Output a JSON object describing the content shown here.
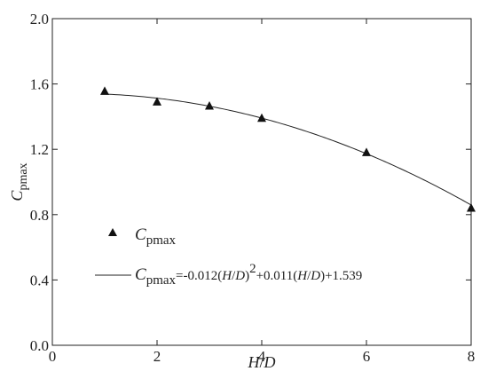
{
  "chart_data": {
    "type": "scatter",
    "xlabel": "H/D",
    "ylabel": "Cpmax",
    "xlim": [
      0,
      8
    ],
    "ylim": [
      0.0,
      2.0
    ],
    "x_ticks": [
      "0",
      "2",
      "4",
      "6",
      "8"
    ],
    "y_ticks": [
      "0.0",
      "0.4",
      "0.8",
      "1.2",
      "1.6",
      "2.0"
    ],
    "grid": false,
    "legend_position": "center-left",
    "series": [
      {
        "name": "Cpmax",
        "marker": "triangle",
        "x": [
          1,
          2,
          3,
          4,
          6,
          8
        ],
        "y": [
          1.555,
          1.49,
          1.465,
          1.39,
          1.18,
          0.84
        ]
      },
      {
        "name": "Cpmax=-0.012(H/D)2+0.011(H/D)+1.539",
        "type": "line",
        "equation": {
          "a": -0.012,
          "b": 0.011,
          "c": 1.539
        },
        "x_range": [
          1,
          8
        ]
      }
    ],
    "legend": {
      "marker_entry": {
        "symbol": "C",
        "subscript": "pmax"
      },
      "line_entry": {
        "symbol": "C",
        "subscript": "pmax",
        "part1": "=-0.012(",
        "H": "H",
        "slash": "/",
        "D": "D",
        "part2": ")",
        "sup": "2",
        "part3": "+0.011(",
        "part4": ")+1.539"
      }
    },
    "axis_title": {
      "x_H": "H",
      "x_slash": "/",
      "x_D": "D",
      "y_symbol": "C",
      "y_subscript": "pmax"
    },
    "colors": {
      "axis": "#222222",
      "marker": "#111111",
      "line": "#222222"
    }
  }
}
